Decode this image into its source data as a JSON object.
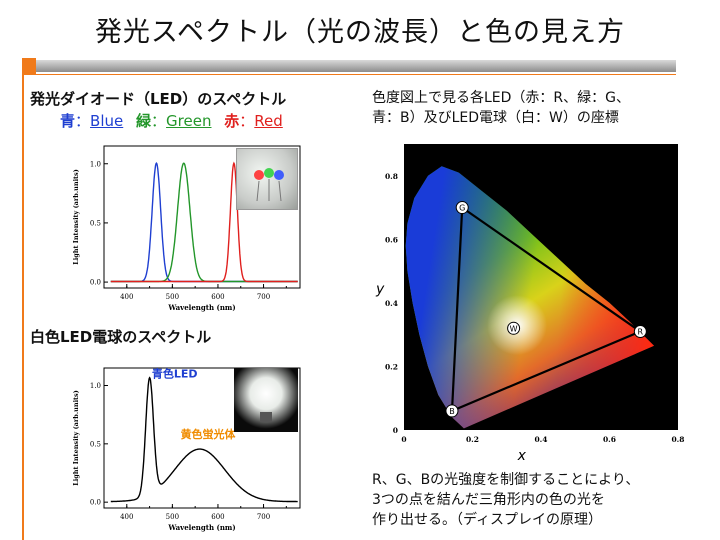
{
  "header": {
    "title": "発光スペクトル（光の波長）と色の見え方"
  },
  "left": {
    "section1_heading": "発光ダイオード（LED）のスペクトル",
    "legend": [
      {
        "kanji": "青",
        "sep": "：",
        "en": "Blue",
        "color": "#1f3fd1"
      },
      {
        "kanji": "緑",
        "sep": "：",
        "en": "Green",
        "color": "#23962a"
      },
      {
        "kanji": "赤",
        "sep": "：",
        "en": "Red",
        "color": "#e0201e"
      }
    ],
    "section2_heading": "白色LED電球のスペクトル"
  },
  "right": {
    "title_line1": "色度図上で見る各LED（赤：R、緑：G、",
    "title_line2": "青：B）及びLED電球（白：W）の座標",
    "body_line1": "R、G、Bの光強度を制御することにより、",
    "body_line2": "3つの点を結んだ三角形内の色の光を",
    "body_line3": "作り出せる。（ディスプレイの原理）"
  },
  "chart_data": [
    {
      "type": "line",
      "xlabel": "Wavelength (nm)",
      "ylabel": "Light Intensity (arb.units)",
      "xlim": [
        350,
        780
      ],
      "ylim": [
        -0.05,
        1.15
      ],
      "xticks": [
        400,
        500,
        600,
        700
      ],
      "yticks": [
        0.0,
        0.5,
        1.0
      ],
      "series": [
        {
          "name": "Blue",
          "color": "#1f3fd1",
          "peak_nm": 465,
          "fwhm_nm": 22,
          "peak": 1.0
        },
        {
          "name": "Green",
          "color": "#23962a",
          "peak_nm": 525,
          "fwhm_nm": 32,
          "peak": 1.0
        },
        {
          "name": "Red",
          "color": "#e0201e",
          "peak_nm": 635,
          "fwhm_nm": 18,
          "peak": 1.0
        }
      ]
    },
    {
      "type": "line",
      "xlabel": "Wavelength (nm)",
      "ylabel": "Light Intensity (arb.units)",
      "xlim": [
        350,
        780
      ],
      "ylim": [
        -0.05,
        1.15
      ],
      "xticks": [
        400,
        500,
        600,
        700
      ],
      "yticks": [
        0.0,
        0.5,
        1.0
      ],
      "annotations": [
        {
          "text": "青色LED",
          "color": "#1f3fd1"
        },
        {
          "text": "黄色蛍光体",
          "color": "#f08c00"
        }
      ],
      "series": [
        {
          "name": "白色LED電球",
          "color": "#000000",
          "components": [
            {
              "peak_nm": 450,
              "fwhm_nm": 20,
              "peak": 1.0
            },
            {
              "peak_nm": 560,
              "fwhm_nm": 130,
              "peak": 0.45
            }
          ]
        }
      ]
    },
    {
      "type": "scatter",
      "xlabel": "x",
      "ylabel": "y",
      "xlim": [
        0,
        0.8
      ],
      "ylim": [
        0,
        0.9
      ],
      "xticks": [
        0,
        0.2,
        0.4,
        0.6,
        0.8
      ],
      "yticks": [
        0,
        0.2,
        0.4,
        0.6,
        0.8
      ],
      "points": [
        {
          "label": "G",
          "x": 0.17,
          "y": 0.7
        },
        {
          "label": "R",
          "x": 0.69,
          "y": 0.31
        },
        {
          "label": "B",
          "x": 0.14,
          "y": 0.06
        },
        {
          "label": "W",
          "x": 0.32,
          "y": 0.32
        }
      ],
      "triangle": [
        "G",
        "R",
        "B"
      ]
    }
  ]
}
